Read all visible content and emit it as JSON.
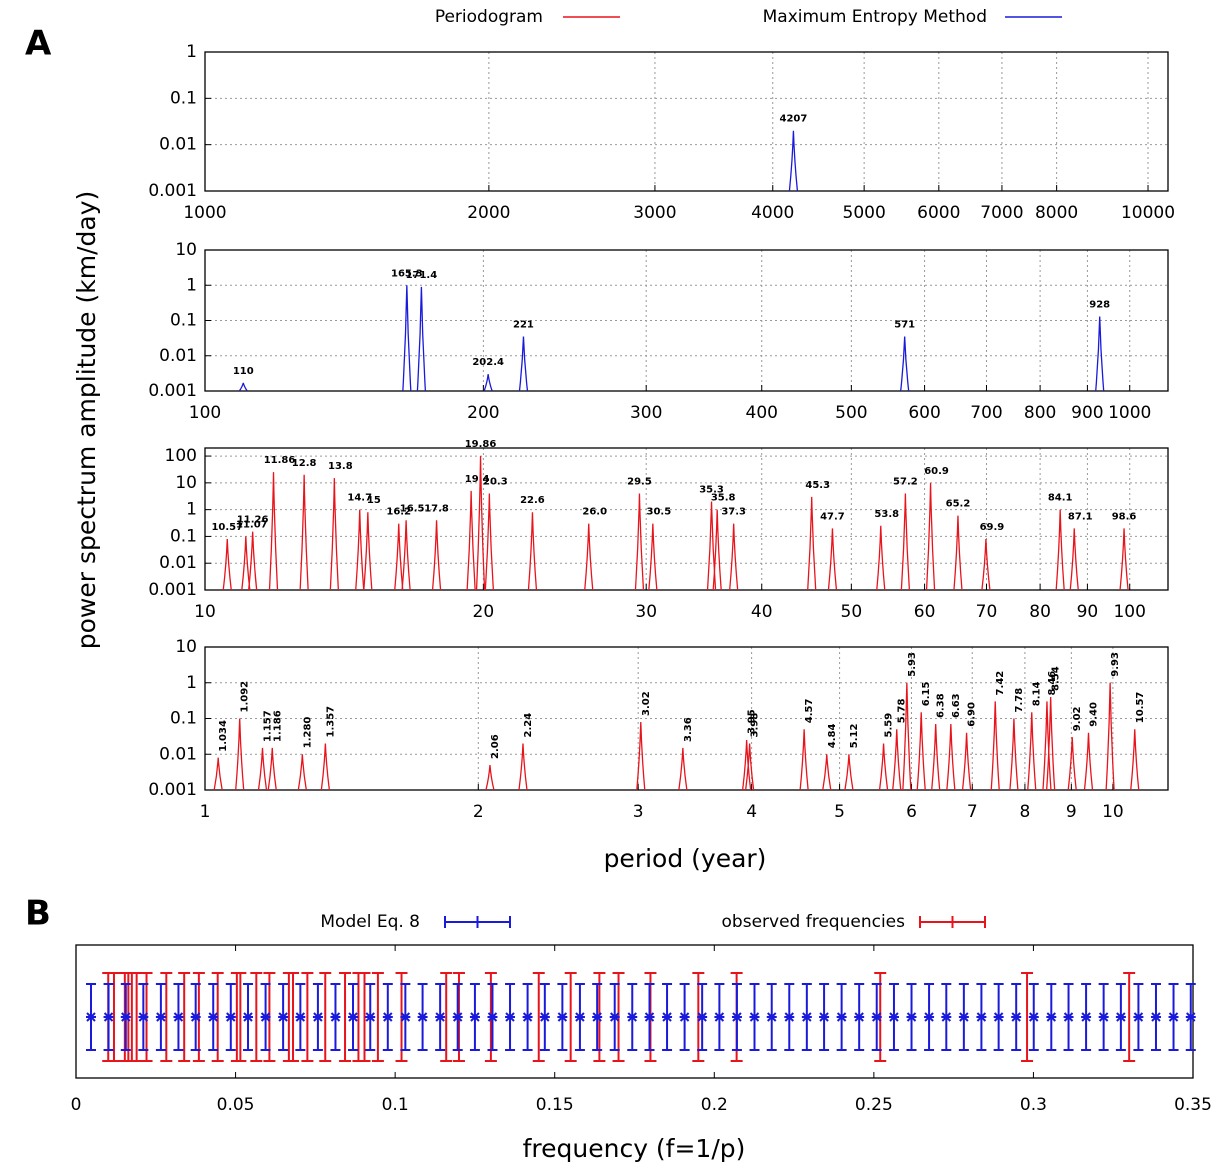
{
  "chart_data": [
    {
      "type": "spectrum",
      "label": "A",
      "ylabel": "power spectrum amplitude (km/day)",
      "xlabel": "period (year)",
      "log_x": true,
      "log_y": true,
      "grid": true,
      "legend_position": "top",
      "series": [
        {
          "name": "Periodogram",
          "color": "#e8141c"
        },
        {
          "name": "Maximum Entropy Method",
          "color": "#1a1adb"
        }
      ],
      "panels": [
        {
          "xlim": [
            1000,
            10500
          ],
          "ylim": [
            0.001,
            1
          ],
          "xticks": [
            1000,
            2000,
            3000,
            4000,
            5000,
            6000,
            7000,
            8000,
            10000
          ],
          "yticks": [
            0.001,
            0.01,
            0.1,
            1
          ],
          "peaks": {
            "series": 1,
            "x": [
              4207
            ],
            "values": [
              0.02
            ],
            "value_labels": [
              "4207"
            ]
          }
        },
        {
          "xlim": [
            100,
            1100
          ],
          "ylim": [
            0.001,
            10
          ],
          "xticks": [
            100,
            200,
            300,
            400,
            500,
            600,
            700,
            800,
            900,
            1000
          ],
          "yticks": [
            0.001,
            0.01,
            0.1,
            1,
            10
          ],
          "peaks": {
            "series": 1,
            "x": [
              110,
              165.3,
              171.4,
              202.4,
              221,
              571,
              928
            ],
            "values": [
              0.0017,
              1,
              0.9,
              0.003,
              0.035,
              0.035,
              0.13
            ],
            "value_labels": [
              "110",
              "165.3",
              "171.4",
              "202.4",
              "221",
              "571",
              "928"
            ]
          }
        },
        {
          "xlim": [
            10,
            110
          ],
          "ylim": [
            0.001,
            200
          ],
          "xticks": [
            10,
            20,
            30,
            40,
            50,
            60,
            70,
            80,
            90,
            100
          ],
          "yticks": [
            0.001,
            0.01,
            0.1,
            1,
            10,
            100
          ],
          "peaks": {
            "series": 0,
            "x": [
              10.57,
              11.07,
              11.26,
              11.86,
              12.8,
              13.8,
              14.7,
              15,
              16.2,
              16.5,
              17.8,
              19.4,
              19.86,
              20.3,
              22.6,
              26.0,
              29.5,
              30.5,
              35.3,
              35.8,
              37.3,
              45.3,
              47.7,
              53.8,
              57.2,
              60.9,
              65.2,
              69.9,
              84.1,
              87.1,
              98.6
            ],
            "values": [
              0.08,
              0.1,
              0.15,
              25,
              20,
              15,
              1,
              0.8,
              0.3,
              0.4,
              0.4,
              5,
              100,
              4,
              0.8,
              0.3,
              4,
              0.3,
              2,
              1,
              0.3,
              3,
              0.2,
              0.25,
              4,
              10,
              0.6,
              0.08,
              1,
              0.2,
              0.2
            ],
            "value_labels": [
              "10.57",
              "11.07",
              "11.26",
              "11.86",
              "12.8",
              "13.8",
              "14.7",
              "15",
              "16.2",
              "16.5",
              "17.8",
              "19.4",
              "19.86",
              "20.3",
              "22.6",
              "26.0",
              "29.5",
              "30.5",
              "35.3",
              "35.8",
              "37.3",
              "45.3",
              "47.7",
              "53.8",
              "57.2",
              "60.9",
              "65.2",
              "69.9",
              "84.1",
              "87.1",
              "98.6"
            ]
          }
        },
        {
          "xlim": [
            1,
            11.5
          ],
          "ylim": [
            0.001,
            10
          ],
          "xticks": [
            1,
            2,
            3,
            4,
            5,
            6,
            7,
            8,
            9,
            10
          ],
          "yticks": [
            0.001,
            0.01,
            0.1,
            1,
            10
          ],
          "peaks": {
            "series": 0,
            "x": [
              1.034,
              1.092,
              1.157,
              1.186,
              1.28,
              1.357,
              2.06,
              2.24,
              3.02,
              3.36,
              3.95,
              3.98,
              4.57,
              4.84,
              5.12,
              5.59,
              5.78,
              5.93,
              6.15,
              6.38,
              6.63,
              6.9,
              7.42,
              7.78,
              8.14,
              8.46,
              8.54,
              9.02,
              9.4,
              9.93,
              10.57
            ],
            "values": [
              0.008,
              0.1,
              0.015,
              0.015,
              0.01,
              0.02,
              0.005,
              0.02,
              0.08,
              0.015,
              0.025,
              0.02,
              0.05,
              0.01,
              0.01,
              0.02,
              0.05,
              1,
              0.15,
              0.07,
              0.07,
              0.04,
              0.3,
              0.1,
              0.15,
              0.3,
              0.4,
              0.03,
              0.04,
              1,
              0.05
            ],
            "value_labels": [
              "1.034",
              "1.092",
              "1.157",
              "1.186",
              "1.280",
              "1.357",
              "2.06",
              "2.24",
              "3.02",
              "3.36",
              "3.95",
              "3.98",
              "4.57",
              "4.84",
              "5.12",
              "5.59",
              "5.78",
              "5.93",
              "6.15",
              "6.38",
              "6.63",
              "6.90",
              "7.42",
              "7.78",
              "8.14",
              "8.46",
              "8.54",
              "9.02",
              "9.40",
              "9.93",
              "10.57"
            ]
          }
        }
      ]
    },
    {
      "type": "errorbar",
      "label": "B",
      "xlabel": "frequency  (f=1/p)",
      "xlim": [
        0,
        0.35
      ],
      "xticks": [
        0,
        0.05,
        0.1,
        0.15,
        0.2,
        0.25,
        0.3,
        0.35
      ],
      "legend_position": "top",
      "series": [
        {
          "name": "Model Eq. 8",
          "color": "#1a1adb",
          "x": [
            0.0047,
            0.0102,
            0.0156,
            0.0211,
            0.0266,
            0.0321,
            0.0375,
            0.043,
            0.0485,
            0.0539,
            0.0594,
            0.0649,
            0.0703,
            0.0758,
            0.0813,
            0.0868,
            0.0922,
            0.0977,
            0.1032,
            0.1086,
            0.1141,
            0.1196,
            0.125,
            0.1305,
            0.136,
            0.1415,
            0.1469,
            0.1524,
            0.1579,
            0.1633,
            0.1688,
            0.1743,
            0.1797,
            0.1852,
            0.1907,
            0.1962,
            0.2016,
            0.2071,
            0.2126,
            0.218,
            0.2235,
            0.229,
            0.2344,
            0.2399,
            0.2454,
            0.2509,
            0.2563,
            0.2618,
            0.2673,
            0.2727,
            0.2782,
            0.2837,
            0.2891,
            0.2946,
            0.3001,
            0.3056,
            0.311,
            0.3165,
            0.322,
            0.3274,
            0.3329,
            0.3384,
            0.3439,
            0.3493
          ]
        },
        {
          "name": "observed frequencies",
          "color": "#e8141c",
          "x": [
            0.0101,
            0.0119,
            0.0153,
            0.0164,
            0.0175,
            0.019,
            0.0221,
            0.0283,
            0.0339,
            0.0385,
            0.0444,
            0.0504,
            0.0515,
            0.0565,
            0.0606,
            0.0667,
            0.068,
            0.0725,
            0.0781,
            0.0843,
            0.0885,
            0.0904,
            0.0946,
            0.102,
            0.116,
            0.12,
            0.13,
            0.145,
            0.155,
            0.164,
            0.17,
            0.18,
            0.195,
            0.207,
            0.252,
            0.298,
            0.33
          ]
        }
      ]
    }
  ]
}
